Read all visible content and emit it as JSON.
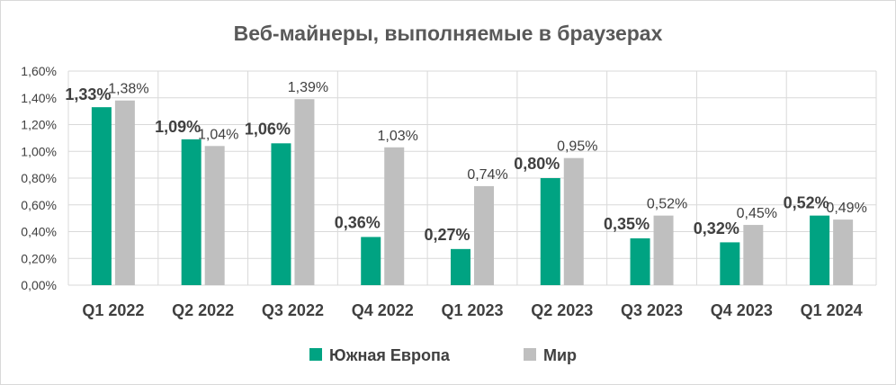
{
  "chart_data": {
    "type": "bar",
    "title": "Веб-майнеры, выполняемые в браузерах",
    "categories": [
      "Q1 2022",
      "Q2 2022",
      "Q3 2022",
      "Q4 2022",
      "Q1 2023",
      "Q2 2023",
      "Q3 2023",
      "Q4 2023",
      "Q1 2024"
    ],
    "series": [
      {
        "name": "Южная Европа",
        "color": "#00a382",
        "values": [
          1.33,
          1.09,
          1.06,
          0.36,
          0.27,
          0.8,
          0.35,
          0.32,
          0.52
        ],
        "labels": [
          "1,33%",
          "1,09%",
          "1,06%",
          "0,36%",
          "0,27%",
          "0,80%",
          "0,35%",
          "0,32%",
          "0,52%"
        ]
      },
      {
        "name": "Мир",
        "color": "#bfbfbf",
        "values": [
          1.38,
          1.04,
          1.39,
          1.03,
          0.74,
          0.95,
          0.52,
          0.45,
          0.49
        ],
        "labels": [
          "1,38%",
          "1,04%",
          "1,39%",
          "1,03%",
          "0,74%",
          "0,95%",
          "0,52%",
          "0,45%",
          "0,49%"
        ]
      }
    ],
    "y_ticks": [
      "0,00%",
      "0,20%",
      "0,40%",
      "0,60%",
      "0,80%",
      "1,00%",
      "1,20%",
      "1,40%",
      "1,60%"
    ],
    "ylim": [
      0,
      1.6
    ],
    "grid": true,
    "legend_position": "bottom"
  }
}
